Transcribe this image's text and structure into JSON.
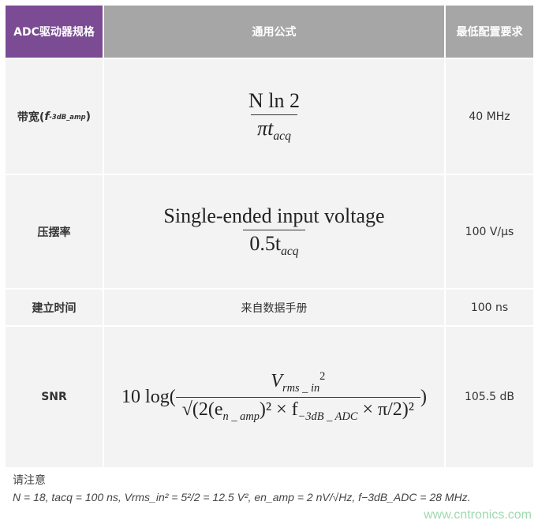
{
  "header": {
    "col1": "ADC驱动器规格",
    "col2": "通用公式",
    "col3": "最低配置要求"
  },
  "rows": [
    {
      "spec": "带宽(",
      "spec_sym": "f",
      "spec_sub": "-3dB_amp",
      "spec_end": ")",
      "formula_num": "N ln 2",
      "formula_den": "πt",
      "formula_den_sub": "acq",
      "value": "40 MHz"
    },
    {
      "spec": "压摆率",
      "formula_num": "Single-ended input voltage",
      "formula_den": "0.5t",
      "formula_den_sub": "acq",
      "value": "100 V/µs"
    },
    {
      "spec": "建立时间",
      "formula": "来自数据手册",
      "value": "100 ns"
    },
    {
      "spec": "SNR",
      "formula_prefix": "10 log(",
      "formula_num": "V",
      "formula_num_sub": "rms _ in",
      "formula_den": "(2(e",
      "formula_den_sub1": "n _ amp",
      "formula_den_mid": ")² × f",
      "formula_den_sub2": "−3dB _ ADC",
      "formula_den_end": "× π/2)²",
      "formula_suffix": ")",
      "value": "105.5 dB"
    }
  ],
  "note": {
    "title": "请注意",
    "text": "N = 18, tacq = 100 ns, Vrms_in² = 5²/2 = 12.5 V², en_amp = 2 nV/√Hz, f−3dB_ADC = 28 MHz."
  },
  "watermark": "www.cntronics.com",
  "colors": {
    "header_purple": "#7b4b93",
    "header_gray": "#a6a6a6",
    "cell_bg": "#f3f3f3"
  }
}
